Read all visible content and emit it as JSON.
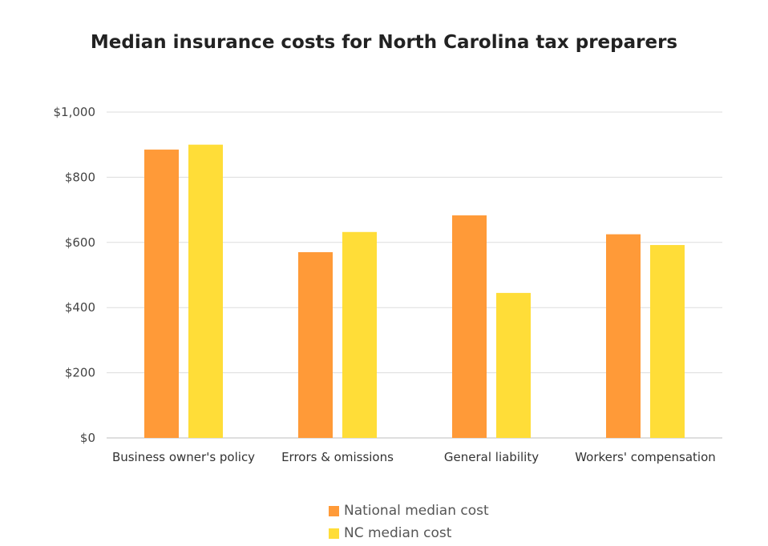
{
  "chart_data": {
    "type": "bar",
    "title": "Median insurance costs for North Carolina tax preparers",
    "xlabel": "",
    "ylabel": "",
    "categories": [
      "Business owner's policy",
      "Errors & omissions",
      "General liability",
      "Workers' compensation"
    ],
    "series": [
      {
        "name": "National median cost",
        "color": "#FF9A38",
        "values": [
          885,
          570,
          683,
          625
        ]
      },
      {
        "name": "NC median cost",
        "color": "#FFDD38",
        "values": [
          900,
          632,
          445,
          592
        ]
      }
    ],
    "ylim": [
      0,
      1000
    ],
    "yticks": [
      0,
      200,
      400,
      600,
      800,
      1000
    ],
    "ytick_labels": [
      "$0",
      "$200",
      "$400",
      "$600",
      "$800",
      "$1,000"
    ],
    "grid": true,
    "legend_position": "bottom"
  }
}
